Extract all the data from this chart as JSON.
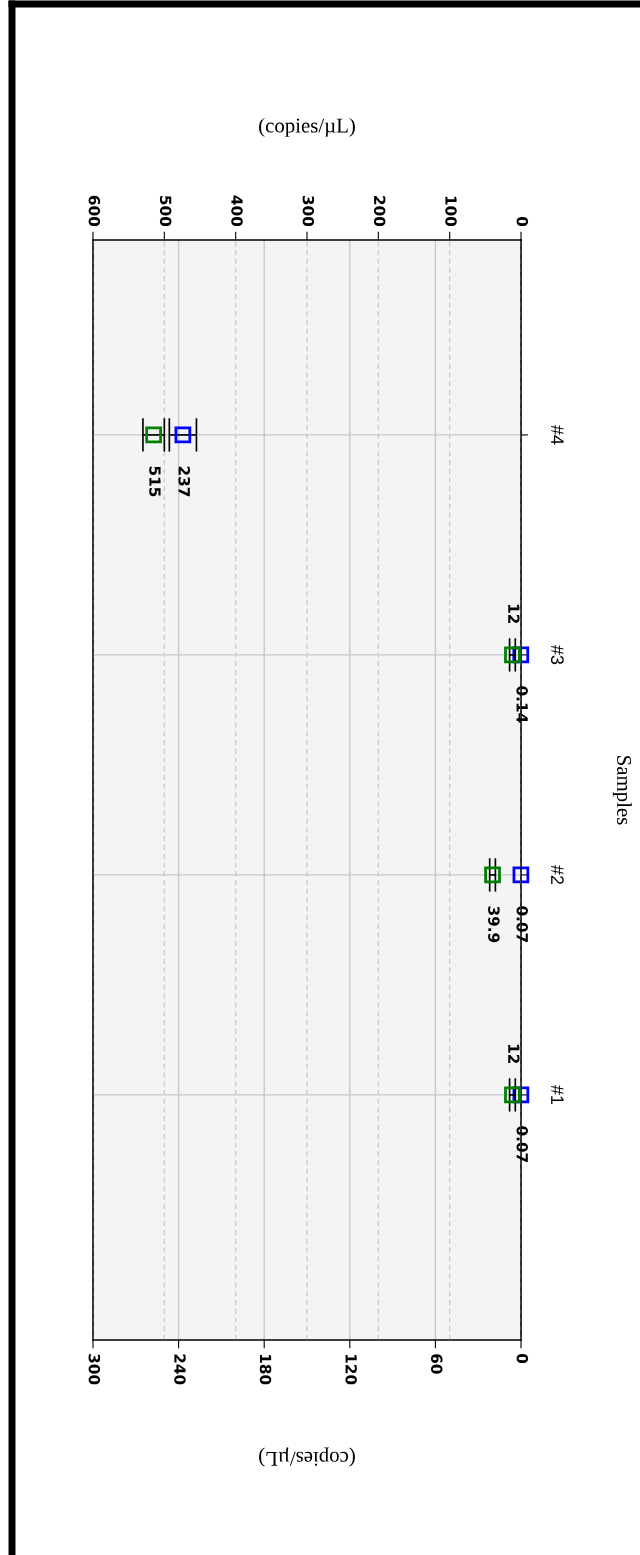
{
  "chart_data": {
    "type": "scatter",
    "orientation": "horizontal",
    "categories": [
      "#4",
      "#3",
      "#2",
      "#1"
    ],
    "xlabel": "(copies/µL)",
    "x2label": "(copies/µL)",
    "ylabel": "Samples",
    "xlim": [
      300,
      0
    ],
    "xticks": [
      300,
      240,
      180,
      120,
      60,
      0
    ],
    "x2lim": [
      600,
      0
    ],
    "x2ticks": [
      600,
      500,
      400,
      300,
      200,
      100,
      0
    ],
    "grid": true,
    "marker": "square",
    "data_labels": true,
    "series": [
      {
        "color": "#0000ff",
        "values": [
          237,
          0.14,
          0.07,
          0.07
        ],
        "errors": [
          9.5,
          null,
          null,
          null
        ]
      },
      {
        "color": "#008000",
        "axis": "x2",
        "values": [
          515,
          12,
          39.9,
          12
        ],
        "errors": [
          15,
          4,
          4,
          4
        ]
      }
    ]
  }
}
